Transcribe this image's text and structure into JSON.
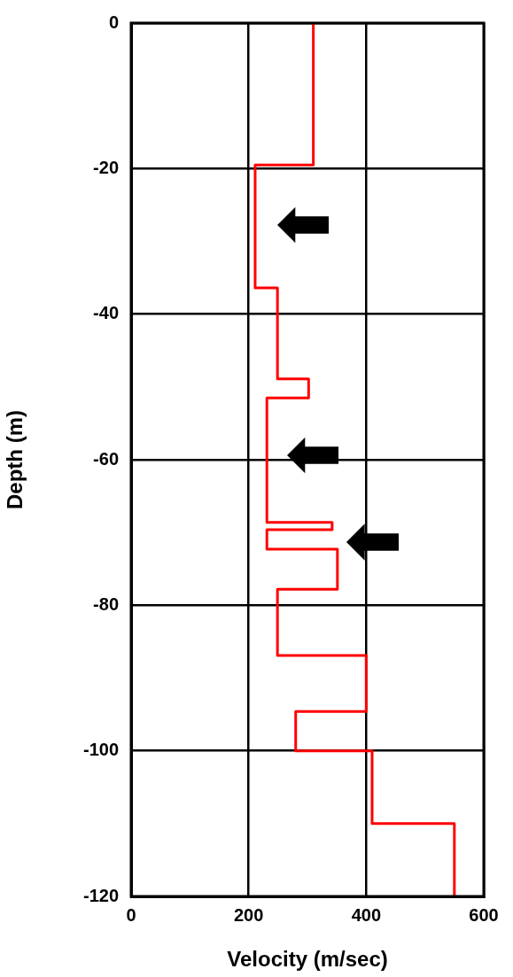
{
  "chart_data": {
    "type": "line",
    "xlabel": "Velocity (m/sec)",
    "ylabel": "Depth (m)",
    "xlim": [
      0,
      600
    ],
    "xticks": [
      0,
      200,
      400,
      600
    ],
    "ylim": [
      -120,
      0
    ],
    "yticks": [
      -120,
      -100,
      -80,
      -60,
      -40,
      -20,
      0
    ],
    "grid": true,
    "legend": false,
    "marker": "none",
    "line_style": "solid",
    "series": [
      {
        "color": "#ff0000",
        "x": [
          310,
          310,
          211,
          211,
          249,
          249,
          302,
          302,
          231,
          231,
          342,
          342,
          231,
          231,
          351,
          351,
          249,
          249,
          400,
          400,
          280,
          280,
          410,
          410,
          550,
          550
        ],
        "values": [
          0,
          -19.5,
          -19.5,
          -36.4,
          -36.4,
          -48.9,
          -48.9,
          -51.5,
          -51.5,
          -68.6,
          -68.6,
          -69.6,
          -69.6,
          -72.3,
          -72.3,
          -77.8,
          -77.8,
          -86.9,
          -86.9,
          -94.6,
          -94.6,
          -100,
          -100,
          -110,
          -110,
          -120
        ]
      }
    ]
  }
}
